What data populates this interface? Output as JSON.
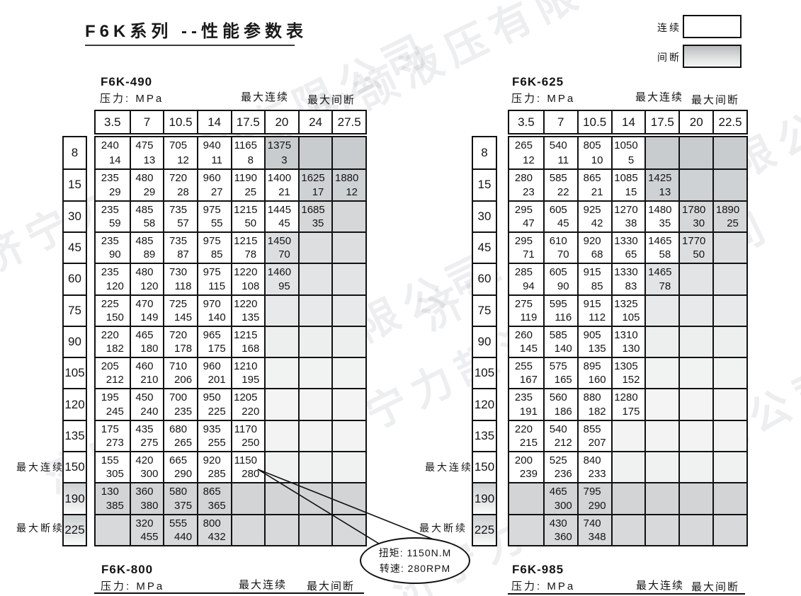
{
  "page": {
    "title": "F6K系列 --性能参数表"
  },
  "legend": {
    "continuous": "连续",
    "intermittent": "间断"
  },
  "labels": {
    "pressure": "压力: MPa",
    "max_continuous": "最大连续",
    "max_intermittent": "最大间断",
    "max_discontinuous": "最大断续"
  },
  "annotation": {
    "torque": "扭矩: 1150N.M",
    "speed": "转速: 280RPM"
  },
  "watermark": "济宁力颉液压有限公司",
  "gray_shades": [
    "#c9ccce",
    "#cfd2d4",
    "#d5d7d9",
    "#dcdee0",
    "#e2e4e5",
    "#e8e9ea",
    "#edeeee",
    "#f1f2f2",
    "#f4f4f5",
    "#f3f3f4",
    "#f0f1f1",
    "#d2d4d6",
    "#d7d9da"
  ],
  "footers": [
    {
      "name": "F6K-800"
    },
    {
      "name": "F6K-985"
    }
  ],
  "tables": [
    {
      "name": "F6K-490",
      "columns": [
        "3.5",
        "7",
        "10.5",
        "14",
        "17.5",
        "20",
        "24",
        "27.5"
      ],
      "rows": [
        {
          "label": "8",
          "gray_from": 5,
          "label_gray": false,
          "cells": [
            [
              "240",
              "14"
            ],
            [
              "475",
              "13"
            ],
            [
              "705",
              "12"
            ],
            [
              "940",
              "11"
            ],
            [
              "1165",
              "8"
            ],
            [
              "1375",
              "3"
            ],
            null,
            null
          ]
        },
        {
          "label": "15",
          "gray_from": 6,
          "label_gray": false,
          "cells": [
            [
              "235",
              "29"
            ],
            [
              "480",
              "29"
            ],
            [
              "720",
              "28"
            ],
            [
              "960",
              "27"
            ],
            [
              "1190",
              "25"
            ],
            [
              "1400",
              "21"
            ],
            [
              "1625",
              "17"
            ],
            [
              "1880",
              "12"
            ]
          ]
        },
        {
          "label": "30",
          "gray_from": 6,
          "label_gray": false,
          "cells": [
            [
              "235",
              "59"
            ],
            [
              "485",
              "58"
            ],
            [
              "735",
              "57"
            ],
            [
              "975",
              "55"
            ],
            [
              "1215",
              "50"
            ],
            [
              "1445",
              "45"
            ],
            [
              "1685",
              "35"
            ],
            null
          ]
        },
        {
          "label": "45",
          "gray_from": 5,
          "label_gray": false,
          "cells": [
            [
              "235",
              "90"
            ],
            [
              "485",
              "89"
            ],
            [
              "735",
              "87"
            ],
            [
              "975",
              "85"
            ],
            [
              "1215",
              "78"
            ],
            [
              "1450",
              "70"
            ],
            null,
            null
          ]
        },
        {
          "label": "60",
          "gray_from": 5,
          "label_gray": false,
          "cells": [
            [
              "235",
              "120"
            ],
            [
              "480",
              "120"
            ],
            [
              "730",
              "118"
            ],
            [
              "975",
              "115"
            ],
            [
              "1220",
              "108"
            ],
            [
              "1460",
              "95"
            ],
            null,
            null
          ]
        },
        {
          "label": "75",
          "gray_from": 5,
          "label_gray": false,
          "cells": [
            [
              "225",
              "150"
            ],
            [
              "470",
              "149"
            ],
            [
              "725",
              "145"
            ],
            [
              "970",
              "140"
            ],
            [
              "1220",
              "135"
            ],
            null,
            null,
            null
          ]
        },
        {
          "label": "90",
          "gray_from": 5,
          "label_gray": false,
          "cells": [
            [
              "220",
              "182"
            ],
            [
              "465",
              "180"
            ],
            [
              "720",
              "178"
            ],
            [
              "965",
              "175"
            ],
            [
              "1215",
              "168"
            ],
            null,
            null,
            null
          ]
        },
        {
          "label": "105",
          "gray_from": 5,
          "label_gray": false,
          "cells": [
            [
              "205",
              "212"
            ],
            [
              "460",
              "210"
            ],
            [
              "710",
              "206"
            ],
            [
              "960",
              "201"
            ],
            [
              "1210",
              "195"
            ],
            null,
            null,
            null
          ]
        },
        {
          "label": "120",
          "gray_from": 5,
          "label_gray": false,
          "cells": [
            [
              "195",
              "245"
            ],
            [
              "450",
              "240"
            ],
            [
              "700",
              "235"
            ],
            [
              "950",
              "225"
            ],
            [
              "1205",
              "220"
            ],
            null,
            null,
            null
          ]
        },
        {
          "label": "135",
          "gray_from": 5,
          "label_gray": false,
          "cells": [
            [
              "175",
              "273"
            ],
            [
              "435",
              "275"
            ],
            [
              "680",
              "265"
            ],
            [
              "935",
              "255"
            ],
            [
              "1170",
              "250"
            ],
            null,
            null,
            null
          ]
        },
        {
          "label": "150",
          "gray_from": 5,
          "label_gray": false,
          "cells": [
            [
              "155",
              "305"
            ],
            [
              "420",
              "300"
            ],
            [
              "665",
              "290"
            ],
            [
              "920",
              "285"
            ],
            [
              "1150",
              "280"
            ],
            null,
            null,
            null
          ]
        },
        {
          "label": "190",
          "gray_from": 0,
          "label_gray": true,
          "cells": [
            [
              "130",
              "385"
            ],
            [
              "360",
              "380"
            ],
            [
              "580",
              "375"
            ],
            [
              "865",
              "365"
            ],
            null,
            null,
            null,
            null
          ]
        },
        {
          "label": "225",
          "gray_from": 0,
          "label_gray": true,
          "cells": [
            null,
            [
              "320",
              "455"
            ],
            [
              "555",
              "440"
            ],
            [
              "800",
              "432"
            ],
            null,
            null,
            null,
            null
          ]
        }
      ]
    },
    {
      "name": "F6K-625",
      "columns": [
        "3.5",
        "7",
        "10.5",
        "14",
        "17.5",
        "20",
        "22.5"
      ],
      "rows": [
        {
          "label": "8",
          "gray_from": 4,
          "label_gray": false,
          "cells": [
            [
              "265",
              "12"
            ],
            [
              "540",
              "11"
            ],
            [
              "805",
              "10"
            ],
            [
              "1050",
              "5"
            ],
            null,
            null,
            null
          ]
        },
        {
          "label": "15",
          "gray_from": 4,
          "label_gray": false,
          "cells": [
            [
              "280",
              "23"
            ],
            [
              "585",
              "22"
            ],
            [
              "865",
              "21"
            ],
            [
              "1085",
              "15"
            ],
            [
              "1425",
              "13"
            ],
            null,
            null
          ]
        },
        {
          "label": "30",
          "gray_from": 5,
          "label_gray": false,
          "cells": [
            [
              "295",
              "47"
            ],
            [
              "605",
              "45"
            ],
            [
              "925",
              "42"
            ],
            [
              "1270",
              "38"
            ],
            [
              "1480",
              "35"
            ],
            [
              "1780",
              "30"
            ],
            [
              "1890",
              "25"
            ]
          ]
        },
        {
          "label": "45",
          "gray_from": 5,
          "label_gray": false,
          "cells": [
            [
              "295",
              "71"
            ],
            [
              "610",
              "70"
            ],
            [
              "920",
              "68"
            ],
            [
              "1330",
              "65"
            ],
            [
              "1465",
              "58"
            ],
            [
              "1770",
              "50"
            ],
            null
          ]
        },
        {
          "label": "60",
          "gray_from": 4,
          "label_gray": false,
          "cells": [
            [
              "285",
              "94"
            ],
            [
              "605",
              "90"
            ],
            [
              "915",
              "85"
            ],
            [
              "1330",
              "83"
            ],
            [
              "1465",
              "78"
            ],
            null,
            null
          ]
        },
        {
          "label": "75",
          "gray_from": 4,
          "label_gray": false,
          "cells": [
            [
              "275",
              "119"
            ],
            [
              "595",
              "116"
            ],
            [
              "915",
              "112"
            ],
            [
              "1325",
              "105"
            ],
            null,
            null,
            null
          ]
        },
        {
          "label": "90",
          "gray_from": 4,
          "label_gray": false,
          "cells": [
            [
              "260",
              "145"
            ],
            [
              "585",
              "140"
            ],
            [
              "905",
              "135"
            ],
            [
              "1310",
              "130"
            ],
            null,
            null,
            null
          ]
        },
        {
          "label": "105",
          "gray_from": 4,
          "label_gray": false,
          "cells": [
            [
              "255",
              "167"
            ],
            [
              "575",
              "165"
            ],
            [
              "895",
              "160"
            ],
            [
              "1305",
              "152"
            ],
            null,
            null,
            null
          ]
        },
        {
          "label": "120",
          "gray_from": 4,
          "label_gray": false,
          "cells": [
            [
              "235",
              "191"
            ],
            [
              "560",
              "186"
            ],
            [
              "880",
              "182"
            ],
            [
              "1280",
              "175"
            ],
            null,
            null,
            null
          ]
        },
        {
          "label": "135",
          "gray_from": 3,
          "label_gray": false,
          "cells": [
            [
              "220",
              "215"
            ],
            [
              "540",
              "212"
            ],
            [
              "855",
              "207"
            ],
            null,
            null,
            null,
            null
          ]
        },
        {
          "label": "150",
          "gray_from": 3,
          "label_gray": false,
          "cells": [
            [
              "200",
              "239"
            ],
            [
              "525",
              "236"
            ],
            [
              "840",
              "233"
            ],
            null,
            null,
            null,
            null
          ]
        },
        {
          "label": "190",
          "gray_from": 0,
          "label_gray": true,
          "cells": [
            null,
            [
              "465",
              "300"
            ],
            [
              "795",
              "290"
            ],
            null,
            null,
            null,
            null
          ]
        },
        {
          "label": "225",
          "gray_from": 0,
          "label_gray": true,
          "cells": [
            null,
            [
              "430",
              "360"
            ],
            [
              "740",
              "348"
            ],
            null,
            null,
            null,
            null
          ]
        }
      ]
    }
  ]
}
